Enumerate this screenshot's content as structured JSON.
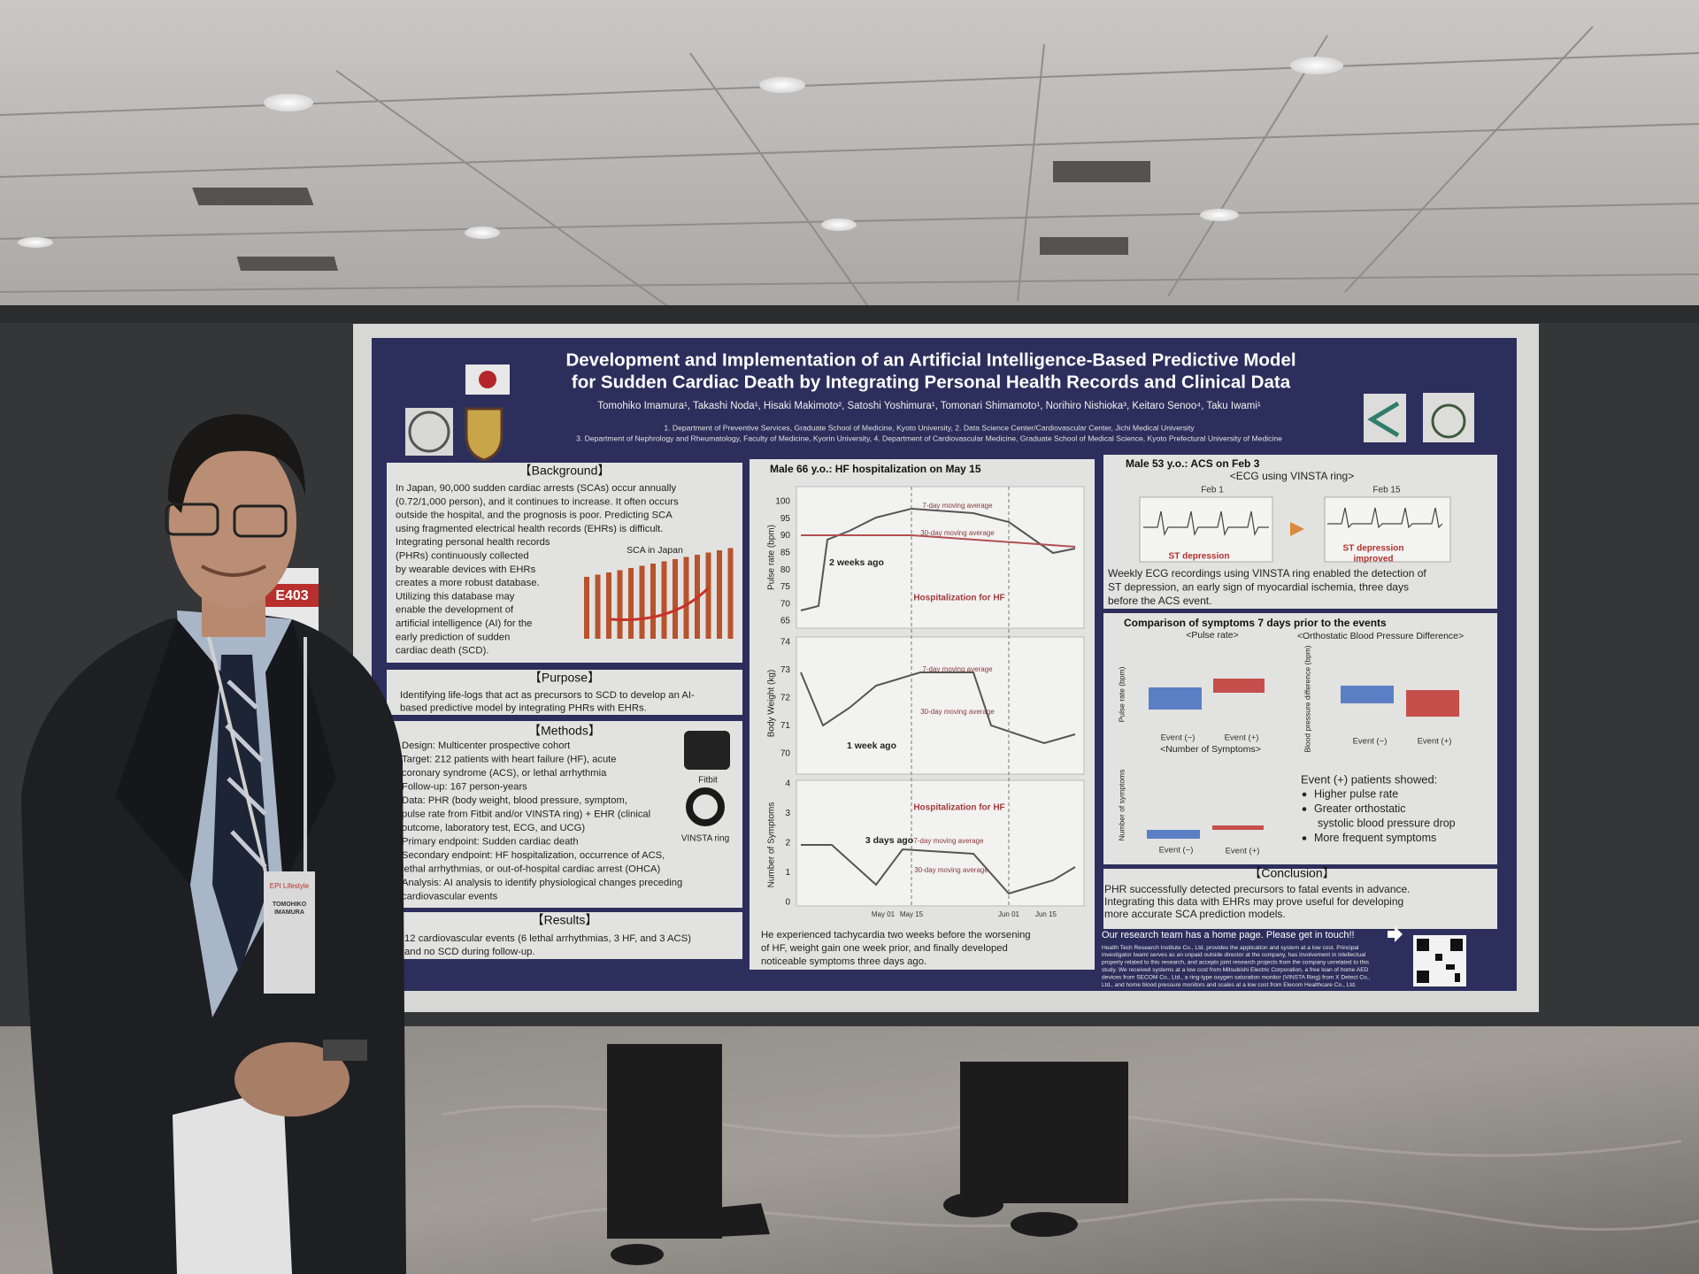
{
  "poster": {
    "title_line_1": "Development and Implementation of an Artificial Intelligence-Based Predictive Model",
    "title_line_2": "for Sudden Cardiac Death by Integrating Personal Health Records and Clinical Data",
    "authors": "Tomohiko Imamura¹, Takashi Noda¹, Hisaki Makimoto², Satoshi Yoshimura¹, Tomonari Shimamoto¹, Norihiro Nishioka³, Keitaro Senoo⁴, Taku Iwami¹",
    "affiliations": [
      "1. Department of Preventive Services, Graduate School of Medicine, Kyoto University, 2. Data Science Center/Cardiovascular Center, Jichi Medical University",
      "3. Department of Nephrology and Rheumatology, Faculty of Medicine, Kyorin University, 4. Department of Cardiovascular Medicine, Graduate School of Medical Science, Kyoto Prefectural University of Medicine"
    ],
    "background": {
      "heading": "【Background】",
      "lines": [
        "In Japan, 90,000 sudden cardiac arrests (SCAs) occur annually",
        "(0.72/1,000 person), and it continues to increase. It often occurs",
        "outside the hospital, and the prognosis is poor. Predicting SCA",
        "using fragmented electrical health records (EHRs) is difficult.",
        "Integrating personal health records",
        "(PHRs) continuously collected",
        "by wearable devices with EHRs",
        "creates a more robust database.",
        "Utilizing this database may",
        "enable the development of",
        "artificial intelligence (AI) for the",
        "early prediction of sudden",
        "cardiac death (SCD)."
      ],
      "chart_title": "SCA in Japan"
    },
    "purpose": {
      "heading": "【Purpose】",
      "lines": [
        "Identifying life-logs that act as precursors to SCD to develop an AI-",
        "based predictive model by integrating PHRs with EHRs."
      ]
    },
    "methods": {
      "heading": "【Methods】",
      "lines": [
        "Design: Multicenter prospective cohort",
        "Target: 212 patients with heart failure (HF), acute",
        "coronary syndrome (ACS), or lethal arrhythmia",
        "Follow-up: 167 person-years",
        "Data: PHR (body weight, blood pressure, symptom,",
        "pulse rate from Fitbit and/or VINSTA ring) + EHR (clinical",
        "outcome, laboratory test, ECG, and UCG)",
        "Primary endpoint: Sudden cardiac death",
        "Secondary endpoint: HF hospitalization, occurrence of ACS,",
        "lethal arrhythmias, or out-of-hospital cardiac arrest (OHCA)",
        "Analysis: AI analysis to identify physiological changes preceding",
        "cardiovascular events"
      ],
      "devices": [
        "Fitbit",
        "VINSTA ring"
      ]
    },
    "results": {
      "heading": "【Results】",
      "lines": [
        "12 cardiovascular events (6 lethal arrhythmias, 3 HF, and 3 ACS)",
        "and no SCD during follow-up."
      ]
    },
    "case_hf": {
      "heading": "Male 66 y.o.: HF hospitalization on May 15",
      "pulse_label": "Pulse rate (bpm)",
      "pulse_ticks": [
        100,
        95,
        90,
        85,
        80,
        75,
        70,
        65
      ],
      "weight_label": "Body Weight (kg)",
      "weight_ticks": [
        74,
        73,
        72,
        71,
        70
      ],
      "symptom_label": "Number of Symptoms",
      "symptom_ticks": [
        4,
        3,
        2,
        1,
        0
      ],
      "x_labels": [
        "May 01",
        "May 15",
        "Jun 01",
        "Jun 15"
      ],
      "moving_7": "7-day moving average",
      "moving_30": "30-day moving average",
      "hospitalization": "Hospitalization for HF",
      "marks": [
        "2 weeks ago",
        "1 week ago",
        "3 days ago"
      ],
      "caption": [
        "He experienced tachycardia two weeks before the worsening",
        "of HF, weight gain one week prior, and finally developed",
        "noticeable symptoms three days ago."
      ]
    },
    "case_acs": {
      "heading": "Male 53 y.o.: ACS on Feb 3",
      "subtitle": "<ECG using VINSTA ring>",
      "dates": [
        "Feb 1",
        "Feb 15"
      ],
      "st_depression": "ST depression",
      "st_improved": [
        "ST depression",
        "improved"
      ],
      "lines": [
        "Weekly ECG recordings using VINSTA ring enabled the detection of",
        "ST depression, an early sign of myocardial ischemia, three days",
        "before the ACS event."
      ]
    },
    "comparison": {
      "heading": "Comparison of symptoms 7 days prior to the events",
      "pulse": "<Pulse rate>",
      "bp": "<Orthostatic Blood Pressure Difference>",
      "symptoms": "<Number of Symptoms>",
      "pulse_axis": "Pulse rate (bpm)",
      "bp_axis": "Blood pressure difference (bpm)",
      "symptom_axis": "Number of symptoms",
      "groups": [
        "Event (−)",
        "Event (+)"
      ],
      "summary": "Event (+) patients showed:",
      "points": [
        "Higher pulse rate",
        "Greater orthostatic",
        "systolic blood pressure drop",
        "More frequent symptoms"
      ]
    },
    "conclusion": {
      "heading": "【Conclusion】",
      "lines": [
        "PHR successfully detected precursors to fatal events in advance.",
        "Integrating this data with EHRs may prove useful for developing",
        "more accurate SCA prediction models."
      ]
    },
    "footer": {
      "contact": "Our research team has a home page. Please get in touch!!",
      "disclosure": [
        "Health Tech Research Institute Co., Ltd. provides the application and system at a low cost. Principal",
        "investigator Iwami serves as an unpaid outside director at the company, has involvement in intellectual",
        "property related to this research, and accepts joint research projects from the company unrelated to this",
        "study. We received systems at a low cost from Mitsubishi Electric Corporation, a free loan of home AED",
        "devices from SECOM Co., Ltd., a ring-type oxygen saturation monitor (VINSTA Ring) from X Detect Co.,",
        "Ltd., and home blood pressure monitors and scales at a low cost from Elecom Healthcare Co., Ltd."
      ]
    }
  },
  "scene": {
    "booth_sign": "E403",
    "name_tag": [
      "TOMOHIKO",
      "IMAMURA"
    ],
    "lanyard": "EPI Lifestyle"
  }
}
